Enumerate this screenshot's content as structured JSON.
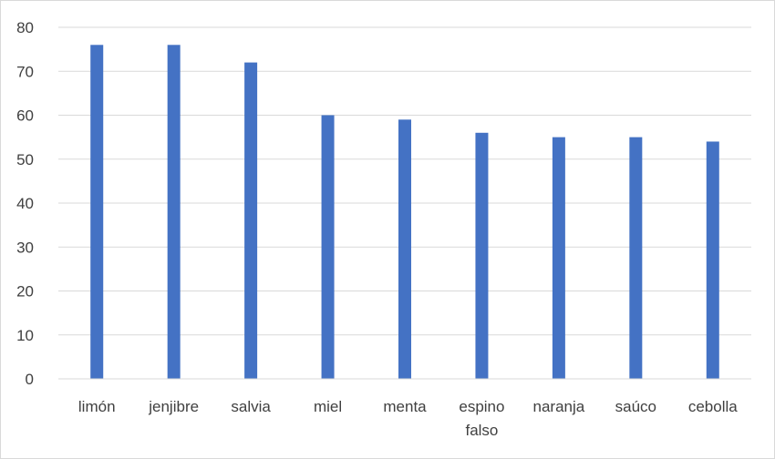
{
  "chart_data": {
    "type": "bar",
    "title": "",
    "xlabel": "",
    "ylabel": "",
    "categories": [
      "limón",
      "jenjibre",
      "salvia",
      "miel",
      "menta",
      "espino falso",
      "naranja",
      "saúco",
      "cebolla"
    ],
    "series": [
      {
        "values": [
          76,
          76,
          72,
          60,
          59,
          56,
          55,
          55,
          54
        ],
        "color": "#4472C4"
      }
    ],
    "ylim": [
      0,
      80
    ],
    "yticks": [
      0,
      10,
      20,
      30,
      40,
      50,
      60,
      70,
      80
    ],
    "grid": true,
    "legend": "none"
  }
}
